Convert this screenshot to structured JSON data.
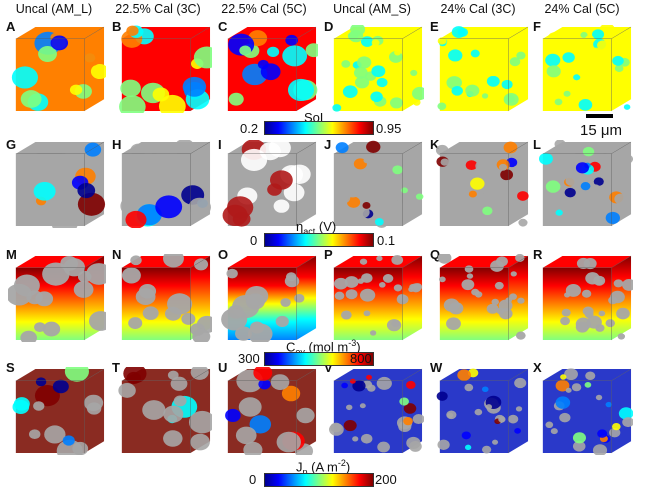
{
  "column_titles": [
    "Uncal (AM_L)",
    "22.5% Cal (3C)",
    "22.5% Cal (5C)",
    "Uncal (AM_S)",
    "24% Cal (3C)",
    "24% Cal (5C)"
  ],
  "panel_labels": [
    [
      "A",
      "B",
      "C",
      "D",
      "E",
      "F"
    ],
    [
      "G",
      "H",
      "I",
      "J",
      "K",
      "L"
    ],
    [
      "M",
      "N",
      "O",
      "P",
      "Q",
      "R"
    ],
    [
      "S",
      "T",
      "U",
      "V",
      "W",
      "X"
    ]
  ],
  "rows": [
    {
      "key": "sol",
      "colorbar": {
        "title": "SoL",
        "min": "0.2",
        "max": "0.95"
      }
    },
    {
      "key": "eta",
      "colorbar": {
        "title": "η",
        "sub": "act",
        "unit": " (V)",
        "min": "0",
        "max": "0.1"
      }
    },
    {
      "key": "cey",
      "colorbar": {
        "title": "C",
        "sub": "ey",
        "unit": " (mol m",
        "sup": "-3",
        "close": ")",
        "min": "300",
        "max": "800"
      }
    },
    {
      "key": "jp",
      "colorbar": {
        "title": "J",
        "sub": "p",
        "unit": " (A m",
        "sup": "-2",
        "close": ")",
        "min": "0",
        "max": "200"
      }
    }
  ],
  "scale_bar": {
    "label": "15 μm"
  },
  "colors": {
    "jet": [
      "#00008f",
      "#0000ff",
      "#0080ff",
      "#00ffff",
      "#80ff80",
      "#ffff00",
      "#ff8000",
      "#ff0000",
      "#800000"
    ],
    "particle_gray": "#a6a6a6",
    "background": "#ffffff"
  }
}
